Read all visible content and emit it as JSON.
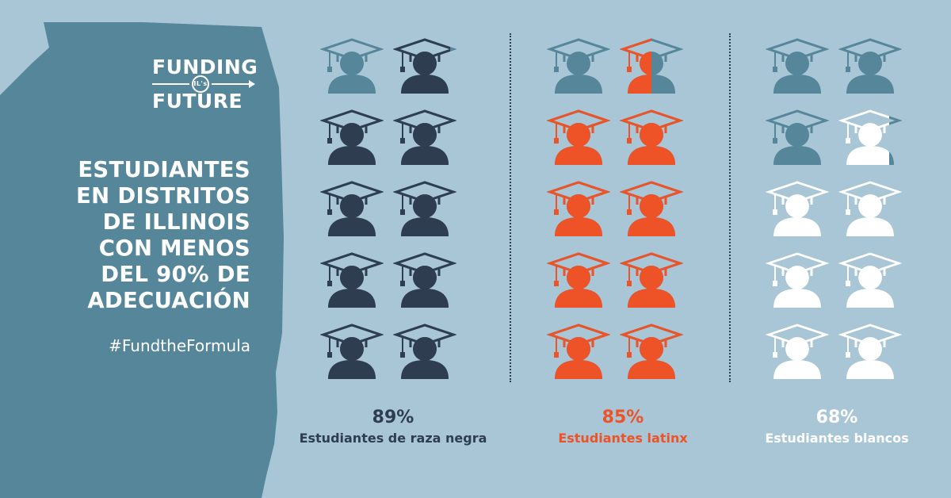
{
  "logo": {
    "line1": "FUNDING",
    "badge": "IL's",
    "line3": "FUTURE"
  },
  "headline": [
    "ESTUDIANTES",
    "EN DISTRITOS",
    "DE ILLINOIS",
    "CON MENOS",
    "DEL 90% DE",
    "ADECUACIÓN"
  ],
  "hashtag": "#FundtheFormula",
  "colors": {
    "background": "#a8c6d6",
    "map": "#55869a",
    "empty_icon": "#55869a",
    "black_students": "#2e3d4f",
    "latinx_students": "#ee5227",
    "white_students": "#ffffff"
  },
  "groups": [
    {
      "percent": "89%",
      "label": "Estudiantes de raza negra",
      "color": "#2e3d4f",
      "value": 89
    },
    {
      "percent": "85%",
      "label": "Estudiantes latinx",
      "color": "#ee5227",
      "value": 85
    },
    {
      "percent": "68%",
      "label": "Estudiantes blancos",
      "color": "#ffffff",
      "value": 68
    }
  ]
}
